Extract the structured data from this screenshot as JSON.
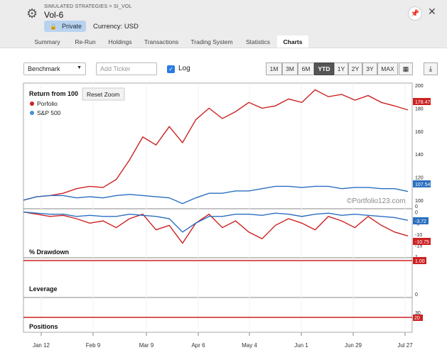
{
  "header": {
    "breadcrumb": "SIMULATED STRATEGIES > SI_VOL",
    "title": "Vol-6",
    "privacy_label": "Private",
    "currency": "Currency: USD",
    "pin_icon": "pin-icon",
    "close_icon": "close-icon",
    "gear_icon": "gear-icon"
  },
  "tabs": [
    {
      "label": "Summary"
    },
    {
      "label": "Re-Run"
    },
    {
      "label": "Holdings"
    },
    {
      "label": "Transactions"
    },
    {
      "label": "Trading System"
    },
    {
      "label": "Statistics"
    },
    {
      "label": "Charts",
      "active": true
    }
  ],
  "toolbar": {
    "benchmark_value": "Benchmark",
    "ticker_placeholder": "Add Ticker",
    "log_label": "Log",
    "log_checked": true,
    "ranges": [
      "1M",
      "3M",
      "6M",
      "YTD",
      "1Y",
      "2Y",
      "3Y",
      "MAX"
    ],
    "active_range": "YTD"
  },
  "chart_data": {
    "type": "line",
    "title": "Return from 100",
    "reset_zoom_label": "Reset Zoom",
    "watermark": "©Portfolio123.com",
    "legend": [
      {
        "name": "Porfolio",
        "color": "#cc2222"
      },
      {
        "name": "S&P 500",
        "color": "#4a8fd6"
      }
    ],
    "x_ticks": [
      "Jan 12",
      "Feb 9",
      "Mar 9",
      "Apr 6",
      "May 4",
      "Jun 1",
      "Jun 29",
      "Jul 27"
    ],
    "x_range": [
      0,
      29
    ],
    "return_axis_ticks": [
      "200",
      "180",
      "160",
      "140",
      "120",
      "100",
      "0"
    ],
    "return_range": [
      95,
      200
    ],
    "portfolio_return": [
      100,
      103,
      104,
      106,
      110,
      112,
      111,
      118,
      135,
      155,
      148,
      164,
      150,
      170,
      180,
      171,
      177,
      185,
      180,
      182,
      188,
      185,
      196,
      190,
      192,
      187,
      191,
      185,
      182,
      178.47
    ],
    "sp500_return": [
      100,
      103,
      104,
      104,
      102,
      103,
      102,
      104,
      105,
      104,
      103,
      102,
      97,
      102,
      106,
      106,
      108,
      108,
      110,
      112,
      112,
      111,
      112,
      112,
      110,
      111,
      111,
      110,
      110,
      107.54
    ],
    "portfolio_last_label": "178.47",
    "sp500_last_label": "107.54",
    "drawdown_label": "% Drawdown",
    "drawdown_axis_ticks": [
      "0",
      "-5",
      "-10",
      "-15"
    ],
    "drawdown_range": [
      -17,
      0.5
    ],
    "portfolio_drawdown": [
      0,
      -1,
      -2,
      -1.5,
      -3,
      -5,
      -4,
      -7,
      -3,
      -1,
      -8,
      -6,
      -14,
      -5,
      -1,
      -7,
      -4,
      -9,
      -12,
      -6,
      -3,
      -5,
      -8,
      -2,
      -4,
      -7,
      -2,
      -6,
      -9,
      -10.75
    ],
    "sp500_drawdown": [
      0,
      -0.5,
      -1,
      -1,
      -2,
      -1.5,
      -2,
      -2,
      -1,
      -1.5,
      -2,
      -3,
      -9,
      -5,
      -2,
      -2,
      -1,
      -1,
      -1.5,
      -0.5,
      -1,
      -2,
      -1,
      -0.5,
      -1.5,
      -1,
      -1.5,
      -2,
      -2.5,
      -3.72
    ],
    "portfolio_drawdown_last_label": "-10.75",
    "sp500_drawdown_last_label": "-3.72",
    "leverage_label": "Leverage",
    "leverage_axis_ticks": [
      "1",
      "0"
    ],
    "leverage_value": 1.0,
    "leverage_last_label": "1.00",
    "positions_label": "Positions",
    "positions_axis_ticks": [
      "30"
    ],
    "positions_value": 20,
    "positions_last_label": "20"
  }
}
